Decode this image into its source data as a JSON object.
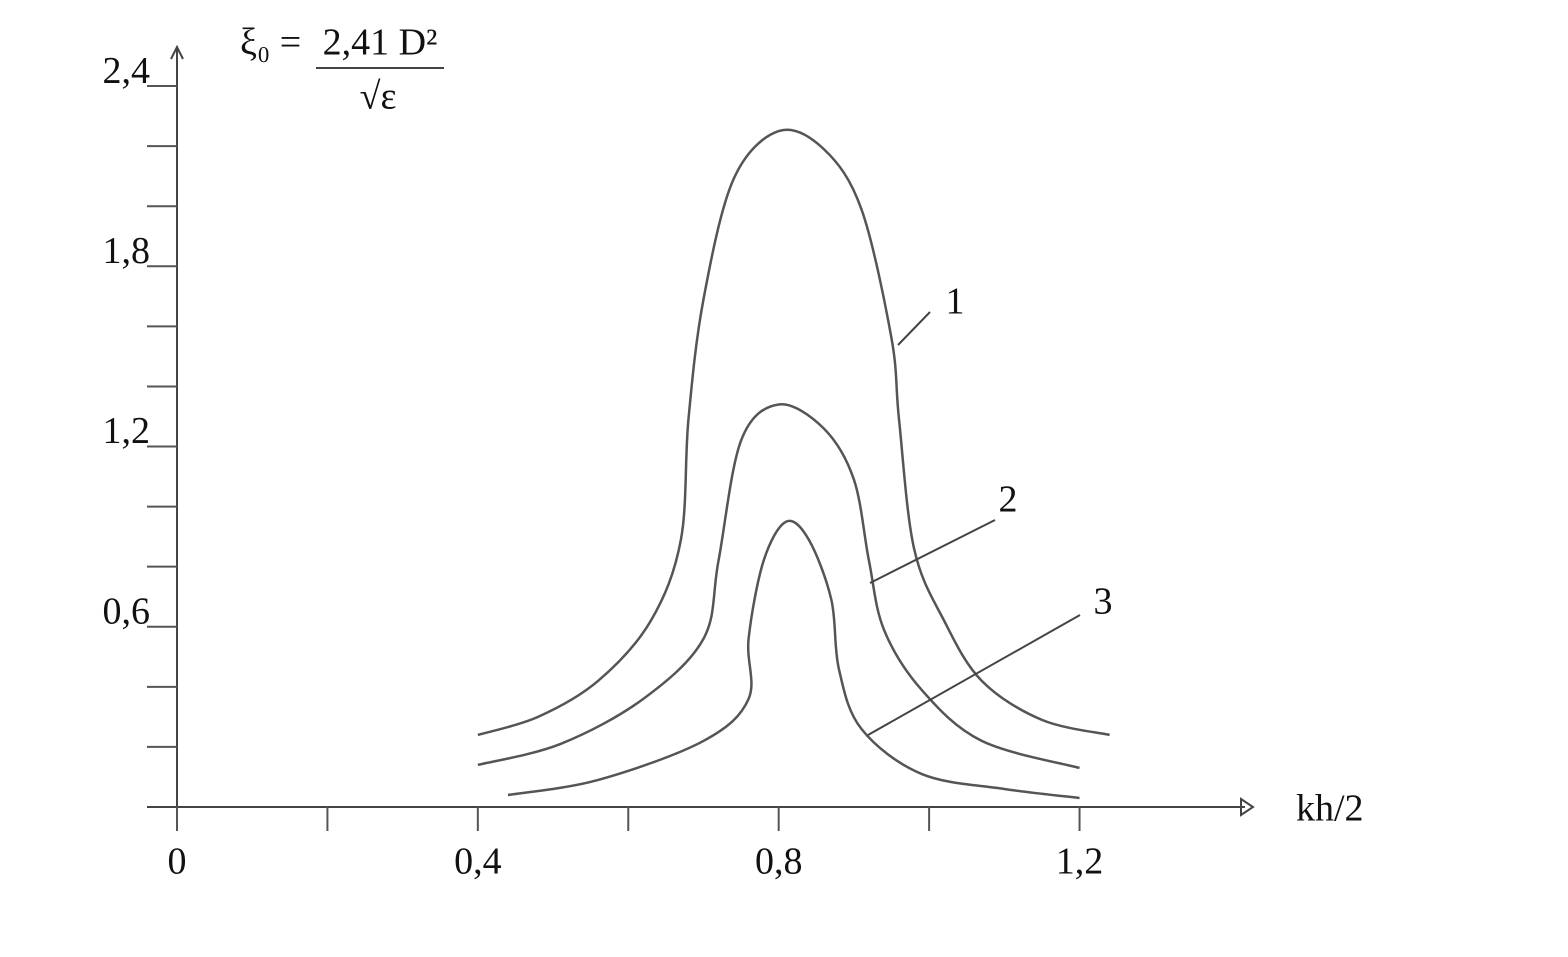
{
  "chart_data": {
    "type": "line",
    "xlabel": "kh/2",
    "formula": {
      "lhs": "ξ₀ =",
      "numerator": "2,41 D²",
      "denominator": "√ε"
    },
    "xlim": [
      0,
      1.42
    ],
    "ylim": [
      0,
      2.53
    ],
    "xticks": [
      {
        "value": 0,
        "label": "0"
      },
      {
        "value": 0.4,
        "label": "0,4"
      },
      {
        "value": 0.8,
        "label": "0,8"
      },
      {
        "value": 1.2,
        "label": "1,2"
      }
    ],
    "xticks_minor": [
      0.2,
      0.6,
      1.0
    ],
    "yticks": [
      {
        "value": 0.6,
        "label": "0,6"
      },
      {
        "value": 1.2,
        "label": "1,2"
      },
      {
        "value": 1.8,
        "label": "1,8"
      },
      {
        "value": 2.4,
        "label": "2,4"
      }
    ],
    "yticks_minor": [
      0.2,
      0.4,
      0.8,
      1.0,
      1.4,
      1.6,
      2.0,
      2.2
    ],
    "series": [
      {
        "name": "1",
        "color": "#555555",
        "x": [
          0.4,
          0.48,
          0.56,
          0.63,
          0.67,
          0.68,
          0.7,
          0.74,
          0.8,
          0.86,
          0.91,
          0.95,
          0.96,
          0.98,
          1.02,
          1.07,
          1.15,
          1.24
        ],
        "values": [
          0.24,
          0.3,
          0.42,
          0.62,
          0.89,
          1.29,
          1.69,
          2.09,
          2.25,
          2.19,
          1.99,
          1.56,
          1.29,
          0.86,
          0.62,
          0.42,
          0.29,
          0.24
        ]
      },
      {
        "name": "2",
        "color": "#555555",
        "x": [
          0.4,
          0.51,
          0.62,
          0.7,
          0.72,
          0.75,
          0.8,
          0.86,
          0.9,
          0.92,
          0.94,
          0.99,
          1.07,
          1.2
        ],
        "values": [
          0.14,
          0.21,
          0.36,
          0.56,
          0.82,
          1.22,
          1.34,
          1.26,
          1.09,
          0.82,
          0.59,
          0.39,
          0.22,
          0.13
        ]
      },
      {
        "name": "3",
        "color": "#555555",
        "x": [
          0.44,
          0.56,
          0.7,
          0.76,
          0.76,
          0.78,
          0.81,
          0.84,
          0.87,
          0.88,
          0.91,
          0.99,
          1.1,
          1.2
        ],
        "values": [
          0.04,
          0.09,
          0.22,
          0.36,
          0.56,
          0.82,
          0.95,
          0.89,
          0.69,
          0.46,
          0.26,
          0.11,
          0.06,
          0.03
        ]
      }
    ]
  }
}
